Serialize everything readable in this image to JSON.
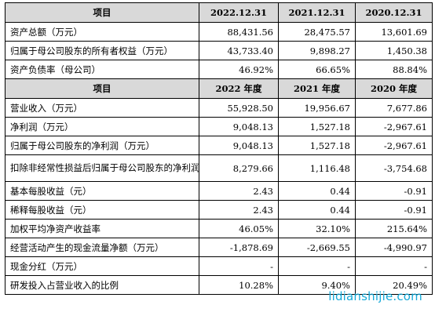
{
  "table": {
    "header1": [
      "项目",
      "2022.12.31",
      "2021.12.31",
      "2020.12.31"
    ],
    "section1": [
      {
        "label": "资产总额（万元）",
        "values": [
          "88,431.56",
          "28,475.57",
          "13,601.69"
        ]
      },
      {
        "label": "归属于母公司股东的所有者权益（万元）",
        "values": [
          "43,733.40",
          "9,898.27",
          "1,450.38"
        ]
      },
      {
        "label": "资产负债率（母公司）",
        "values": [
          "46.92%",
          "66.65%",
          "88.84%"
        ]
      }
    ],
    "header2": [
      "项目",
      "2022 年度",
      "2021 年度",
      "2020 年度"
    ],
    "section2": [
      {
        "label": "营业收入（万元）",
        "values": [
          "55,928.50",
          "19,956.67",
          "7,677.86"
        ]
      },
      {
        "label": "净利润（万元）",
        "values": [
          "9,048.13",
          "1,527.18",
          "-2,967.61"
        ]
      },
      {
        "label": "归属于母公司股东的净利润（万元）",
        "values": [
          "9,048.13",
          "1,527.18",
          "-2,967.61"
        ]
      },
      {
        "label": "扣除非经常性损益后归属于母公司股东的净利润（万元）",
        "values": [
          "8,279.66",
          "1,116.48",
          "-3,754.68"
        ]
      },
      {
        "label": "基本每股收益（元）",
        "values": [
          "2.43",
          "0.44",
          "-0.91"
        ]
      },
      {
        "label": "稀释每股收益（元）",
        "values": [
          "2.43",
          "0.44",
          "-0.91"
        ]
      },
      {
        "label": "加权平均净资产收益率",
        "values": [
          "46.05%",
          "32.10%",
          "215.64%"
        ]
      },
      {
        "label": "经营活动产生的现金流量净额（万元）",
        "values": [
          "-1,878.69",
          "-2,669.55",
          "-4,990.97"
        ]
      },
      {
        "label": "现金分红（万元）",
        "values": [
          "-",
          "-",
          "-"
        ]
      },
      {
        "label": "研发投入占营业收入的比例",
        "values": [
          "10.28%",
          "9.40%",
          "20.49%"
        ]
      }
    ]
  },
  "watermark": "lidianshijie.com"
}
